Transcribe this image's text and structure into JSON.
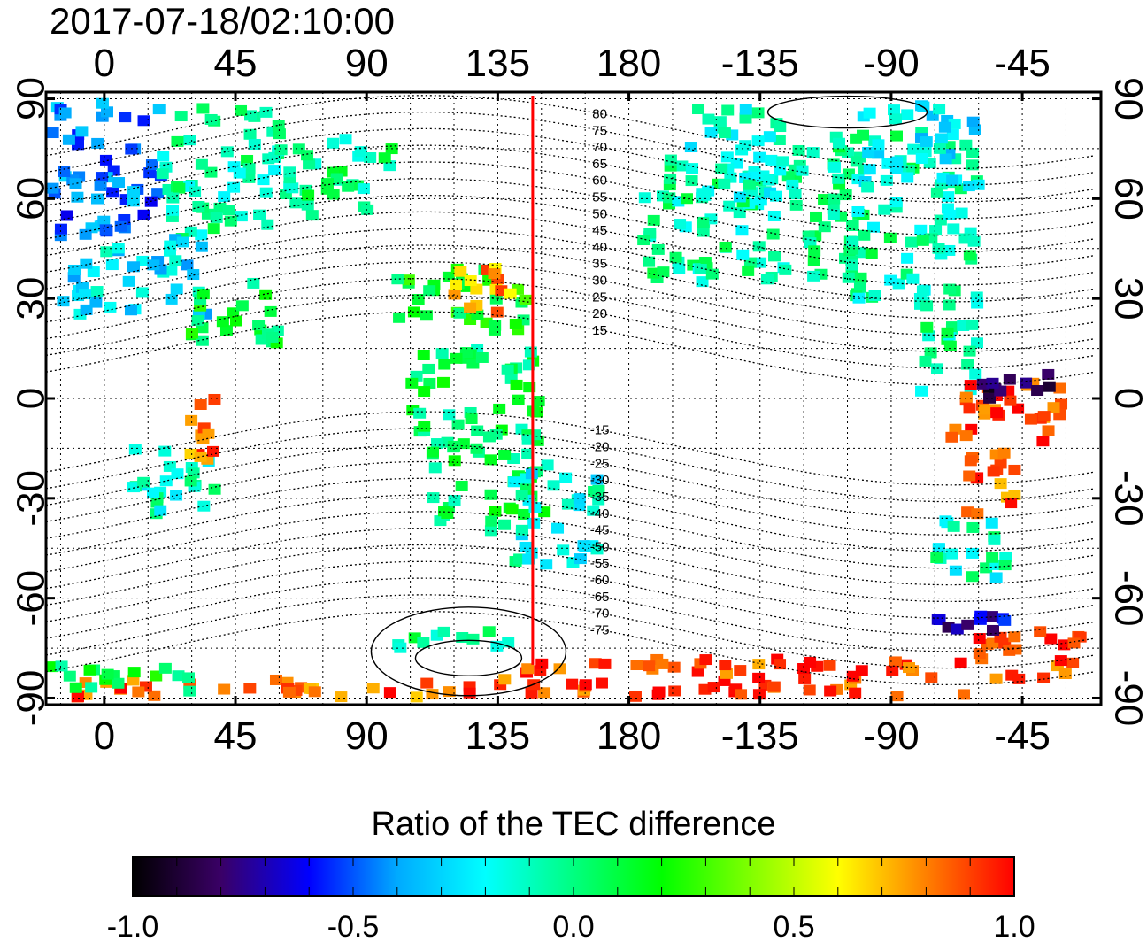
{
  "title": "2017-07-18/02:10:00",
  "map": {
    "lon_ticks": [
      "0",
      "45",
      "90",
      "135",
      "180",
      "-135",
      "-90",
      "-45"
    ],
    "lon_values": [
      0,
      45,
      90,
      135,
      180,
      225,
      270,
      315
    ],
    "lat_ticks": [
      "90",
      "60",
      "30",
      "0",
      "-30",
      "-60",
      "-90"
    ],
    "lat_values": [
      90,
      60,
      30,
      0,
      -30,
      -60,
      -90
    ],
    "lon_range": [
      -20,
      342
    ],
    "lat_range": [
      -92,
      92
    ],
    "marker_longitude": 147,
    "marker_color": "#ff0000",
    "contour_labels_north": [
      "80",
      "75",
      "70",
      "65",
      "60",
      "55",
      "50",
      "45",
      "40",
      "35",
      "30",
      "25",
      "20",
      "15"
    ],
    "contour_labels_south": [
      "-15",
      "-20",
      "-25",
      "-30",
      "-35",
      "-40",
      "-45",
      "-50",
      "-55",
      "-60",
      "-65",
      "-70",
      "-75"
    ]
  },
  "colorbar": {
    "title": "Ratio of the TEC difference",
    "tick_labels": [
      "-1.0",
      "-0.5",
      "0.0",
      "0.5",
      "1.0"
    ],
    "tick_values": [
      -1.0,
      -0.5,
      0.0,
      0.5,
      1.0
    ],
    "range": [
      -1.0,
      1.0
    ],
    "colors": [
      "#000000",
      "#3a0066",
      "#0000ff",
      "#00aaff",
      "#00ffff",
      "#00ff80",
      "#00ff00",
      "#80ff00",
      "#ffff00",
      "#ff8000",
      "#ff0000"
    ]
  }
}
